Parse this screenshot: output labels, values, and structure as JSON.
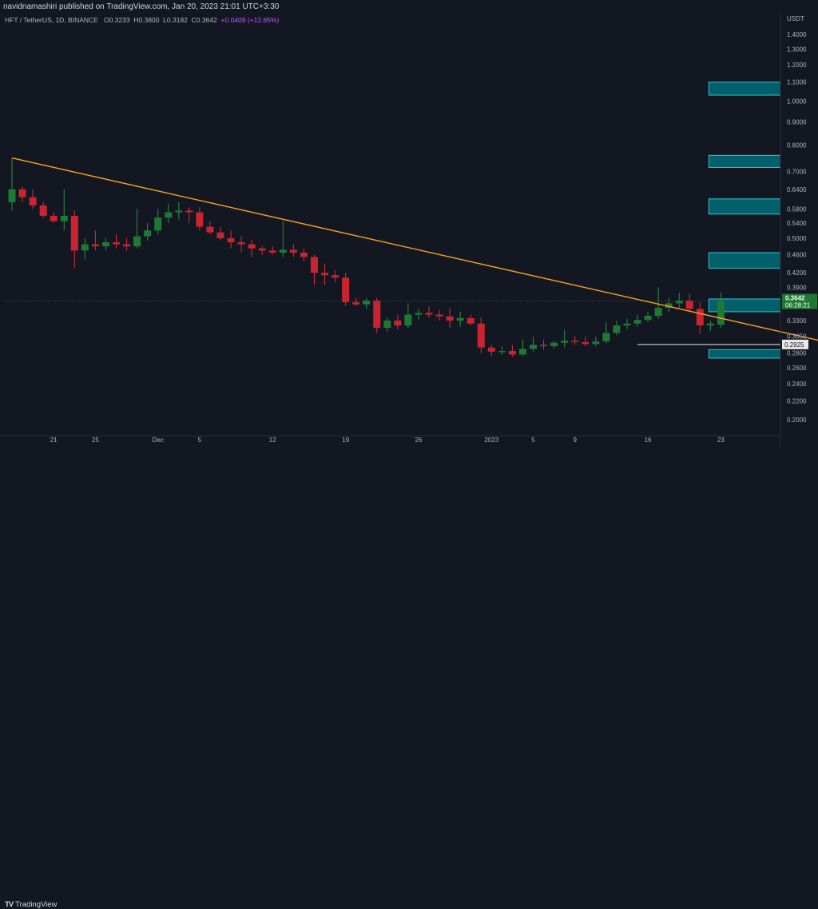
{
  "header": {
    "publisher_line": "navidnamashiri published on TradingView.com, Jan 20, 2023 21:01 UTC+3:30"
  },
  "legend": {
    "symbol": "HFT / TetherUS, 1D, BINANCE",
    "open_label": "O",
    "open": "0.3233",
    "high_label": "H",
    "high": "0.3800",
    "low_label": "L",
    "low": "0.3182",
    "close_label": "C",
    "close": "0.3642",
    "change": "+0.0409 (+12.65%)"
  },
  "axis": {
    "currency": "USDT",
    "scale": "log",
    "y_ticks": [
      "1.4000",
      "1.3000",
      "1.2000",
      "1.1000",
      "1.0000",
      "0.9000",
      "0.8000",
      "0.7000",
      "0.6400",
      "0.5800",
      "0.5400",
      "0.5000",
      "0.4600",
      "0.4200",
      "0.3900",
      "0.3600",
      "0.3300",
      "0.3050",
      "0.2800",
      "0.2600",
      "0.2400",
      "0.2200",
      "0.2000"
    ],
    "x_ticks": [
      "21",
      "25",
      "Dec",
      "5",
      "12",
      "19",
      "26",
      "2023",
      "5",
      "9",
      "16",
      "23"
    ]
  },
  "price_labels": {
    "last_price": "0.3642",
    "countdown": "06:28:21",
    "line_price": "0.2925"
  },
  "colors": {
    "background": "#131722",
    "up": "#1e7a33",
    "down": "#c9242f",
    "trendline": "#f7a21b",
    "zone_fill": "#006d77",
    "zone_border": "#2ec4d6",
    "grid_text": "#b2b5be"
  },
  "footer": {
    "brand": "TradingView"
  },
  "chart_data": {
    "type": "candlestick",
    "title": "HFT / TetherUS, 1D, BINANCE",
    "ylabel": "USDT",
    "y_scale": "log",
    "ylim": [
      0.195,
      1.45
    ],
    "x_start_date": "2022-11-17",
    "candles": [
      {
        "o": 0.6,
        "h": 0.75,
        "l": 0.575,
        "c": 0.64
      },
      {
        "o": 0.64,
        "h": 0.65,
        "l": 0.6,
        "c": 0.615
      },
      {
        "o": 0.615,
        "h": 0.64,
        "l": 0.58,
        "c": 0.59
      },
      {
        "o": 0.59,
        "h": 0.6,
        "l": 0.555,
        "c": 0.56
      },
      {
        "o": 0.56,
        "h": 0.57,
        "l": 0.54,
        "c": 0.545
      },
      {
        "o": 0.545,
        "h": 0.64,
        "l": 0.52,
        "c": 0.56
      },
      {
        "o": 0.56,
        "h": 0.575,
        "l": 0.43,
        "c": 0.47
      },
      {
        "o": 0.47,
        "h": 0.5,
        "l": 0.45,
        "c": 0.485
      },
      {
        "o": 0.485,
        "h": 0.52,
        "l": 0.47,
        "c": 0.48
      },
      {
        "o": 0.48,
        "h": 0.5,
        "l": 0.47,
        "c": 0.49
      },
      {
        "o": 0.49,
        "h": 0.51,
        "l": 0.475,
        "c": 0.485
      },
      {
        "o": 0.485,
        "h": 0.5,
        "l": 0.47,
        "c": 0.48
      },
      {
        "o": 0.48,
        "h": 0.58,
        "l": 0.475,
        "c": 0.505
      },
      {
        "o": 0.505,
        "h": 0.54,
        "l": 0.495,
        "c": 0.52
      },
      {
        "o": 0.52,
        "h": 0.58,
        "l": 0.51,
        "c": 0.555
      },
      {
        "o": 0.555,
        "h": 0.595,
        "l": 0.54,
        "c": 0.57
      },
      {
        "o": 0.57,
        "h": 0.6,
        "l": 0.55,
        "c": 0.575
      },
      {
        "o": 0.575,
        "h": 0.585,
        "l": 0.54,
        "c": 0.57
      },
      {
        "o": 0.57,
        "h": 0.585,
        "l": 0.52,
        "c": 0.53
      },
      {
        "o": 0.53,
        "h": 0.545,
        "l": 0.51,
        "c": 0.515
      },
      {
        "o": 0.515,
        "h": 0.53,
        "l": 0.495,
        "c": 0.5
      },
      {
        "o": 0.5,
        "h": 0.52,
        "l": 0.475,
        "c": 0.49
      },
      {
        "o": 0.49,
        "h": 0.505,
        "l": 0.465,
        "c": 0.485
      },
      {
        "o": 0.485,
        "h": 0.495,
        "l": 0.455,
        "c": 0.475
      },
      {
        "o": 0.475,
        "h": 0.48,
        "l": 0.46,
        "c": 0.47
      },
      {
        "o": 0.47,
        "h": 0.48,
        "l": 0.46,
        "c": 0.465
      },
      {
        "o": 0.465,
        "h": 0.545,
        "l": 0.455,
        "c": 0.472
      },
      {
        "o": 0.472,
        "h": 0.485,
        "l": 0.455,
        "c": 0.465
      },
      {
        "o": 0.465,
        "h": 0.475,
        "l": 0.445,
        "c": 0.455
      },
      {
        "o": 0.455,
        "h": 0.46,
        "l": 0.395,
        "c": 0.42
      },
      {
        "o": 0.42,
        "h": 0.44,
        "l": 0.395,
        "c": 0.415
      },
      {
        "o": 0.415,
        "h": 0.425,
        "l": 0.4,
        "c": 0.41
      },
      {
        "o": 0.41,
        "h": 0.42,
        "l": 0.355,
        "c": 0.362
      },
      {
        "o": 0.362,
        "h": 0.37,
        "l": 0.355,
        "c": 0.358
      },
      {
        "o": 0.358,
        "h": 0.37,
        "l": 0.35,
        "c": 0.365
      },
      {
        "o": 0.365,
        "h": 0.37,
        "l": 0.31,
        "c": 0.318
      },
      {
        "o": 0.318,
        "h": 0.335,
        "l": 0.312,
        "c": 0.33
      },
      {
        "o": 0.33,
        "h": 0.34,
        "l": 0.315,
        "c": 0.322
      },
      {
        "o": 0.322,
        "h": 0.36,
        "l": 0.318,
        "c": 0.34
      },
      {
        "o": 0.34,
        "h": 0.35,
        "l": 0.332,
        "c": 0.343
      },
      {
        "o": 0.343,
        "h": 0.355,
        "l": 0.335,
        "c": 0.34
      },
      {
        "o": 0.34,
        "h": 0.348,
        "l": 0.33,
        "c": 0.337
      },
      {
        "o": 0.337,
        "h": 0.352,
        "l": 0.318,
        "c": 0.33
      },
      {
        "o": 0.33,
        "h": 0.345,
        "l": 0.32,
        "c": 0.334
      },
      {
        "o": 0.334,
        "h": 0.34,
        "l": 0.322,
        "c": 0.325
      },
      {
        "o": 0.325,
        "h": 0.335,
        "l": 0.28,
        "c": 0.288
      },
      {
        "o": 0.288,
        "h": 0.292,
        "l": 0.276,
        "c": 0.282
      },
      {
        "o": 0.282,
        "h": 0.29,
        "l": 0.278,
        "c": 0.283
      },
      {
        "o": 0.283,
        "h": 0.292,
        "l": 0.275,
        "c": 0.278
      },
      {
        "o": 0.278,
        "h": 0.3,
        "l": 0.276,
        "c": 0.286
      },
      {
        "o": 0.286,
        "h": 0.304,
        "l": 0.282,
        "c": 0.292
      },
      {
        "o": 0.292,
        "h": 0.3,
        "l": 0.285,
        "c": 0.29
      },
      {
        "o": 0.29,
        "h": 0.298,
        "l": 0.287,
        "c": 0.295
      },
      {
        "o": 0.295,
        "h": 0.315,
        "l": 0.288,
        "c": 0.298
      },
      {
        "o": 0.298,
        "h": 0.305,
        "l": 0.292,
        "c": 0.296
      },
      {
        "o": 0.296,
        "h": 0.305,
        "l": 0.29,
        "c": 0.293
      },
      {
        "o": 0.293,
        "h": 0.304,
        "l": 0.29,
        "c": 0.297
      },
      {
        "o": 0.297,
        "h": 0.328,
        "l": 0.294,
        "c": 0.31
      },
      {
        "o": 0.31,
        "h": 0.33,
        "l": 0.306,
        "c": 0.322
      },
      {
        "o": 0.322,
        "h": 0.333,
        "l": 0.316,
        "c": 0.325
      },
      {
        "o": 0.325,
        "h": 0.34,
        "l": 0.32,
        "c": 0.331
      },
      {
        "o": 0.331,
        "h": 0.345,
        "l": 0.328,
        "c": 0.338
      },
      {
        "o": 0.338,
        "h": 0.39,
        "l": 0.333,
        "c": 0.352
      },
      {
        "o": 0.352,
        "h": 0.37,
        "l": 0.345,
        "c": 0.36
      },
      {
        "o": 0.36,
        "h": 0.38,
        "l": 0.352,
        "c": 0.365
      },
      {
        "o": 0.365,
        "h": 0.378,
        "l": 0.345,
        "c": 0.35
      },
      {
        "o": 0.35,
        "h": 0.362,
        "l": 0.308,
        "c": 0.322
      },
      {
        "o": 0.322,
        "h": 0.33,
        "l": 0.313,
        "c": 0.325
      },
      {
        "o": 0.3233,
        "h": 0.38,
        "l": 0.3182,
        "c": 0.3642
      }
    ],
    "trendline": {
      "from": {
        "index": 0,
        "price": 0.75
      },
      "to": {
        "index": 80,
        "price": 0.2895
      }
    },
    "horizontal_line": {
      "from_index": 60,
      "price": 0.2925
    },
    "zones": [
      {
        "low": 1.03,
        "high": 1.1
      },
      {
        "low": 0.715,
        "high": 0.76
      },
      {
        "low": 0.565,
        "high": 0.61
      },
      {
        "low": 0.43,
        "high": 0.465
      },
      {
        "low": 0.345,
        "high": 0.368
      },
      {
        "low": 0.273,
        "high": 0.285
      }
    ],
    "zone_start_index": 67
  }
}
